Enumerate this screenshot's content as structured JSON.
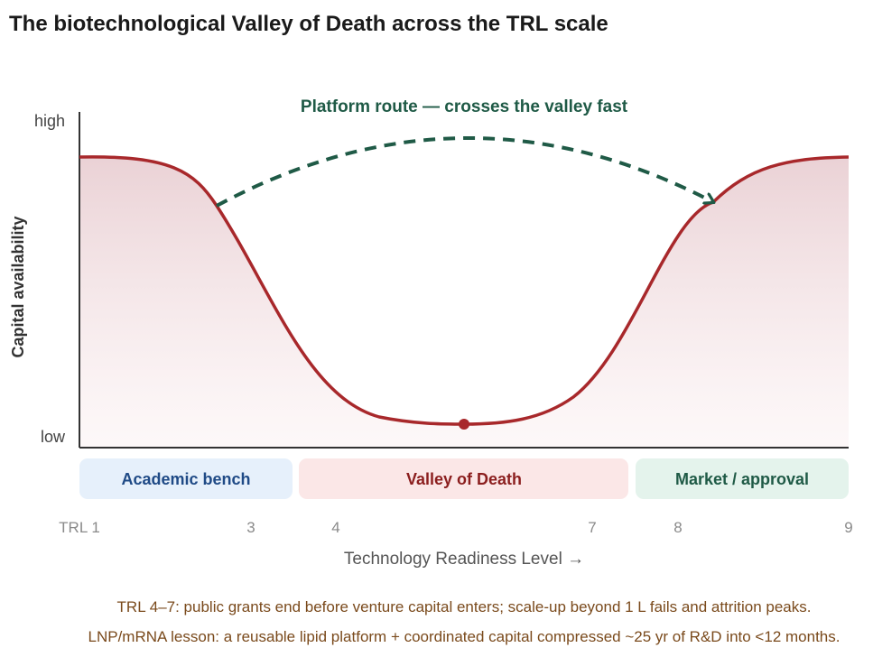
{
  "title": "The biotechnological Valley of Death across the TRL scale",
  "y_axis": {
    "label": "Capital availability",
    "high": "high",
    "low": "low"
  },
  "x_axis": {
    "label": "Technology Readiness Level →",
    "ticks": [
      "TRL 1",
      "3",
      "4",
      "7",
      "8",
      "9"
    ]
  },
  "route_label": "Platform route — crosses the valley fast",
  "zones": [
    {
      "label": "Academic bench",
      "bg": "#e6f0fb",
      "color": "#1f4a86"
    },
    {
      "label": "Valley of Death",
      "bg": "#fbe7e7",
      "color": "#8b1e1e"
    },
    {
      "label": "Market / approval",
      "bg": "#e4f3ec",
      "color": "#1f5a46"
    }
  ],
  "notes": [
    "TRL 4–7: public grants end before venture capital enters; scale-up beyond 1 L fails and attrition peaks.",
    "LNP/mRNA lesson: a reusable lipid platform + coordinated capital compressed ~25 yr of R&D into <12 months."
  ],
  "colors": {
    "curve": "#a8282b",
    "route": "#1f5a46",
    "axis": "#333333"
  }
}
